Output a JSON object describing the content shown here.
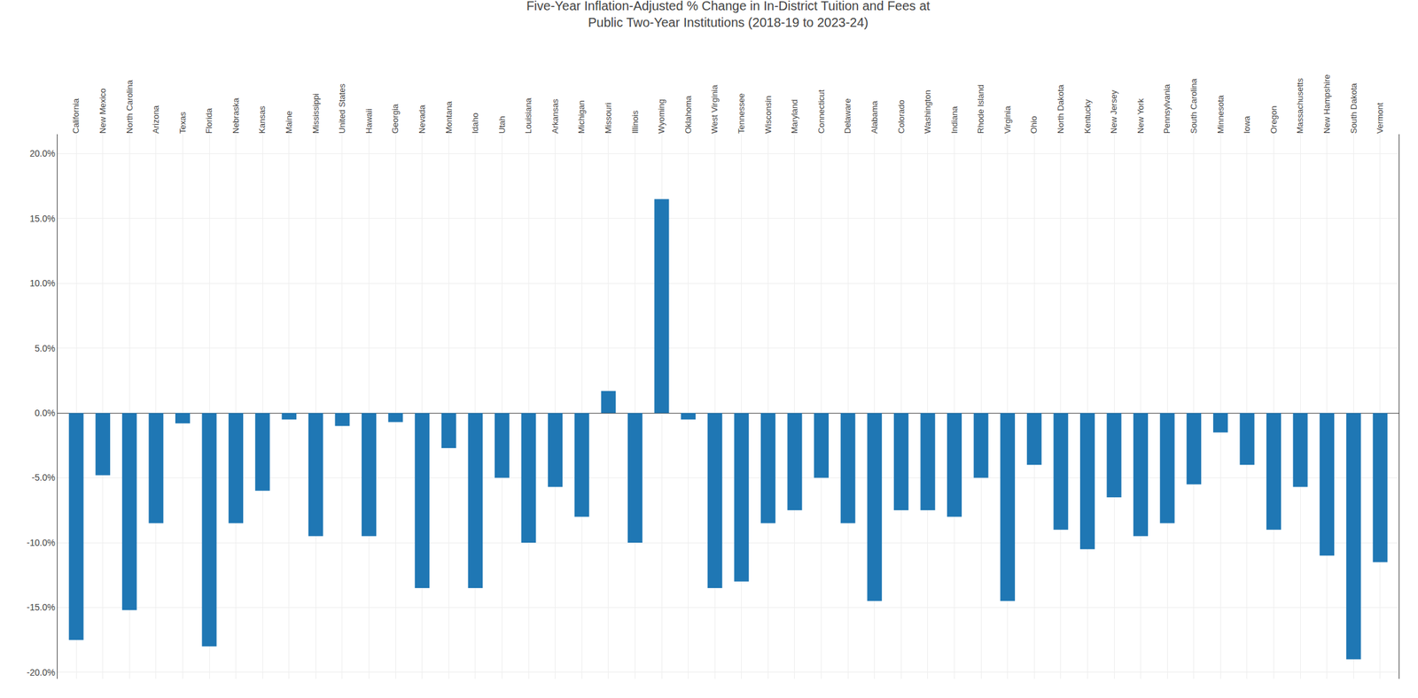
{
  "chart_data": {
    "type": "bar",
    "title": "Five-Year Inflation-Adjusted % Change in In-District Tuition and Fees at\nPublic Two-Year Institutions (2018-19 to 2023-24)",
    "categories": [
      "California",
      "New Mexico",
      "North Carolina",
      "Arizona",
      "Texas",
      "Florida",
      "Nebraska",
      "Kansas",
      "Maine",
      "Mississippi",
      "United States",
      "Hawaii",
      "Georgia",
      "Nevada",
      "Montana",
      "Idaho",
      "Utah",
      "Louisiana",
      "Arkansas",
      "Michigan",
      "Missouri",
      "Illinois",
      "Wyoming",
      "Oklahoma",
      "West Virginia",
      "Tennessee",
      "Wisconsin",
      "Maryland",
      "Connecticut",
      "Delaware",
      "Alabama",
      "Colorado",
      "Washington",
      "Indiana",
      "Rhode Island",
      "Virginia",
      "Ohio",
      "North Dakota",
      "Kentucky",
      "New Jersey",
      "New York",
      "Pennsylvania",
      "South Carolina",
      "Minnesota",
      "Iowa",
      "Oregon",
      "Massachusetts",
      "New Hampshire",
      "South Dakota",
      "Vermont"
    ],
    "values": [
      -17.5,
      -4.8,
      -15.2,
      -8.5,
      -0.8,
      -18.0,
      -8.5,
      -6.0,
      -0.5,
      -9.5,
      -1.0,
      -9.5,
      -0.7,
      -13.5,
      -2.7,
      -13.5,
      -5.0,
      -10.0,
      -5.7,
      -8.0,
      1.7,
      -10.0,
      16.5,
      -0.5,
      -13.5,
      -13.0,
      -8.5,
      -7.5,
      -5.0,
      -8.5,
      -14.5,
      -7.5,
      -7.5,
      -8.0,
      -5.0,
      -14.5,
      -4.0,
      -9.0,
      -10.5,
      -6.5,
      -9.5,
      -8.5,
      -5.5,
      -1.5,
      -4.0,
      -9.0,
      -5.7,
      -11.0,
      -19.0,
      -11.5
    ],
    "ylim": [
      -20.5,
      21.5
    ],
    "yticks": [
      {
        "value": -20.0,
        "label": "-20.0%"
      },
      {
        "value": -15.0,
        "label": "-15.0%"
      },
      {
        "value": -10.0,
        "label": "-10.0%"
      },
      {
        "value": -5.0,
        "label": "-5.0%"
      },
      {
        "value": 0.0,
        "label": "0.0%"
      },
      {
        "value": 5.0,
        "label": "5.0%"
      },
      {
        "value": 10.0,
        "label": "10.0%"
      },
      {
        "value": 15.0,
        "label": "15.0%"
      },
      {
        "value": 20.0,
        "label": "20.0%"
      }
    ],
    "grid": true
  }
}
